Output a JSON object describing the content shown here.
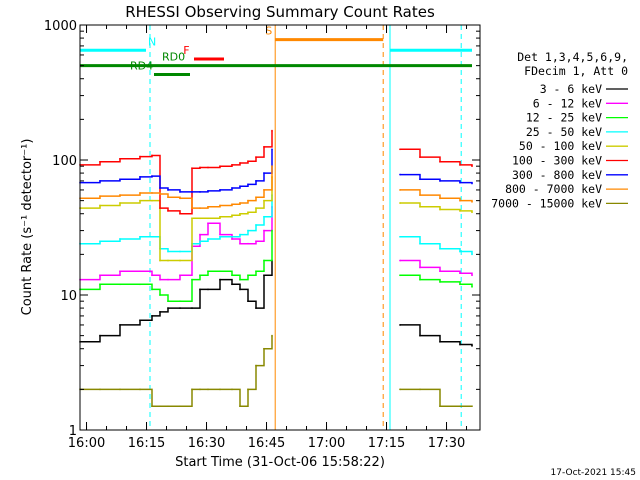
{
  "chart_data": {
    "type": "line",
    "title": "RHESSI Observing Summary Count Rates",
    "xlabel": "Start Time (31-Oct-06 15:58:22)",
    "ylabel": "Count Rate (s⁻¹ detector⁻¹)",
    "x_start_minutes": 0,
    "x_end_minutes": 100,
    "x_ticks": [
      {
        "t": 1.63,
        "label": "16:00"
      },
      {
        "t": 16.63,
        "label": "16:15"
      },
      {
        "t": 31.63,
        "label": "16:30"
      },
      {
        "t": 46.63,
        "label": "16:45"
      },
      {
        "t": 61.63,
        "label": "17:00"
      },
      {
        "t": 76.63,
        "label": "17:15"
      },
      {
        "t": 91.63,
        "label": "17:30"
      }
    ],
    "ylim": [
      1,
      1000
    ],
    "y_scale": "log",
    "y_ticks": [
      {
        "v": 1,
        "label": "1"
      },
      {
        "v": 10,
        "label": "10"
      },
      {
        "v": 100,
        "label": "100"
      },
      {
        "v": 1000,
        "label": "1000"
      }
    ],
    "data_gaps": [
      [
        0,
        0
      ],
      [
        48.5,
        77.5
      ]
    ],
    "legend_header": [
      "Det 1,3,4,5,6,9,",
      "FDecim 1, Att 0"
    ],
    "legend_position": "right",
    "series": [
      {
        "name": "3 - 6 keV",
        "color": "#000000",
        "x": [
          0,
          5,
          10,
          15,
          18,
          20,
          22,
          25,
          28,
          30,
          32,
          35,
          38,
          40,
          42,
          44,
          46,
          48,
          80,
          85,
          90,
          95,
          98
        ],
        "y": [
          4.5,
          5,
          6,
          6.5,
          7,
          7.5,
          8,
          8,
          8,
          11,
          11,
          13,
          12,
          11,
          9,
          8,
          14,
          18,
          6,
          5,
          4.5,
          4.3,
          4.2
        ]
      },
      {
        "name": "6 - 12 keV",
        "color": "#ff00ff",
        "x": [
          0,
          5,
          10,
          15,
          18,
          20,
          22,
          25,
          28,
          30,
          32,
          35,
          38,
          40,
          42,
          44,
          46,
          48,
          80,
          85,
          90,
          95,
          98
        ],
        "y": [
          13,
          14,
          15,
          15,
          14,
          13,
          13,
          14,
          23,
          28,
          34,
          28,
          26,
          24,
          24,
          25,
          30,
          45,
          18,
          16,
          15,
          14.5,
          14
        ]
      },
      {
        "name": "12 - 25 keV",
        "color": "#00ff00",
        "x": [
          0,
          5,
          10,
          15,
          18,
          20,
          22,
          25,
          28,
          30,
          32,
          35,
          38,
          40,
          42,
          44,
          46,
          48,
          80,
          85,
          90,
          95,
          98
        ],
        "y": [
          11,
          12,
          12,
          12,
          11,
          10,
          9,
          9,
          13,
          14,
          15,
          15,
          14,
          13,
          14,
          15,
          18,
          30,
          14,
          13,
          12.5,
          12,
          11.5
        ]
      },
      {
        "name": "25 - 50 keV",
        "color": "#00ffff",
        "x": [
          0,
          5,
          10,
          15,
          18,
          20,
          22,
          25,
          28,
          30,
          32,
          35,
          38,
          40,
          42,
          44,
          46,
          48,
          80,
          85,
          90,
          95,
          98
        ],
        "y": [
          24,
          25,
          26,
          27,
          27,
          22,
          21,
          21,
          24,
          25,
          26,
          27,
          27,
          28,
          30,
          33,
          38,
          55,
          27,
          24,
          22,
          21,
          20
        ]
      },
      {
        "name": "50 - 100 keV",
        "color": "#cccc00",
        "x": [
          0,
          5,
          10,
          15,
          18,
          20,
          22,
          25,
          28,
          30,
          32,
          35,
          38,
          40,
          42,
          44,
          46,
          48,
          80,
          85,
          90,
          95,
          98
        ],
        "y": [
          44,
          46,
          48,
          50,
          50,
          18,
          18,
          18,
          37,
          37,
          37,
          38,
          39,
          40,
          41,
          44,
          50,
          75,
          48,
          45,
          43,
          42,
          41
        ]
      },
      {
        "name": "100 - 300 keV",
        "color": "#ff0000",
        "x": [
          0,
          5,
          10,
          15,
          18,
          20,
          22,
          25,
          28,
          30,
          32,
          35,
          38,
          40,
          42,
          44,
          46,
          48,
          80,
          85,
          90,
          95,
          98
        ],
        "y": [
          92,
          97,
          102,
          106,
          108,
          44,
          42,
          40,
          87,
          88,
          88,
          90,
          92,
          95,
          98,
          105,
          125,
          165,
          120,
          105,
          97,
          92,
          90
        ]
      },
      {
        "name": "300 - 800 keV",
        "color": "#0000ff",
        "x": [
          0,
          5,
          10,
          15,
          18,
          20,
          22,
          25,
          28,
          30,
          32,
          35,
          38,
          40,
          42,
          44,
          46,
          48,
          80,
          85,
          90,
          95,
          98
        ],
        "y": [
          68,
          70,
          72,
          75,
          76,
          62,
          60,
          58,
          58,
          58,
          59,
          60,
          62,
          64,
          66,
          70,
          80,
          120,
          78,
          72,
          70,
          68,
          67
        ]
      },
      {
        "name": "800 - 7000 keV",
        "color": "#ff8800",
        "x": [
          0,
          5,
          10,
          15,
          18,
          20,
          22,
          25,
          28,
          30,
          32,
          35,
          38,
          40,
          42,
          44,
          46,
          48,
          80,
          85,
          90,
          95,
          98
        ],
        "y": [
          52,
          54,
          55,
          57,
          57,
          56,
          53,
          52,
          44,
          44,
          45,
          46,
          47,
          48,
          50,
          53,
          60,
          90,
          60,
          55,
          52,
          50,
          49
        ]
      },
      {
        "name": "7000 - 15000 keV",
        "color": "#888800",
        "x": [
          0,
          5,
          10,
          15,
          18,
          20,
          22,
          25,
          28,
          30,
          32,
          35,
          38,
          40,
          42,
          44,
          46,
          48,
          80,
          85,
          90,
          95,
          98
        ],
        "y": [
          2,
          2,
          2,
          2,
          1.5,
          1.5,
          1.5,
          1.5,
          2,
          2,
          2,
          2,
          2,
          1.5,
          2,
          3,
          4,
          5,
          2,
          2,
          1.5,
          1.5,
          1.5
        ]
      }
    ],
    "annotations": [
      {
        "label": "N",
        "kind": "flag",
        "color": "#00ffff",
        "x_start": 0,
        "x_end": 16.5,
        "level": 650,
        "label_at": 17
      },
      {
        "label": "N",
        "kind": "flag",
        "color": "#00ffff",
        "x_start": 77.5,
        "x_end": 98,
        "level": 650,
        "label_at": null
      },
      {
        "label": "F",
        "kind": "flag",
        "color": "#ff0000",
        "x_start": 28.5,
        "x_end": 36,
        "level": 560,
        "label_at": 25.8
      },
      {
        "label": "RD0",
        "kind": "flag",
        "color": "#008800",
        "x_start": 0,
        "x_end": 98,
        "level": 500,
        "label_at": 20.5
      },
      {
        "label": "RD4",
        "kind": "flag",
        "color": "#008800",
        "x_start": 18.5,
        "x_end": 27.5,
        "level": 430,
        "label_at": 12.5
      },
      {
        "label": "S",
        "kind": "flag",
        "color": "#ff8800",
        "x_start": 48.8,
        "x_end": 75.8,
        "level": 780,
        "label_at": 46.3
      }
    ],
    "vlines": [
      {
        "x": 0,
        "color": "#00ffff",
        "style": "solid"
      },
      {
        "x": 17.5,
        "color": "#00ffff",
        "style": "dashed"
      },
      {
        "x": 48.8,
        "color": "#ff8800",
        "style": "solid"
      },
      {
        "x": 75.8,
        "color": "#ff8800",
        "style": "dashed"
      },
      {
        "x": 77.5,
        "color": "#00ffff",
        "style": "solid"
      },
      {
        "x": 95.3,
        "color": "#00ffff",
        "style": "dashed"
      }
    ]
  },
  "footer_stamp": "17-Oct-2021 15:45"
}
